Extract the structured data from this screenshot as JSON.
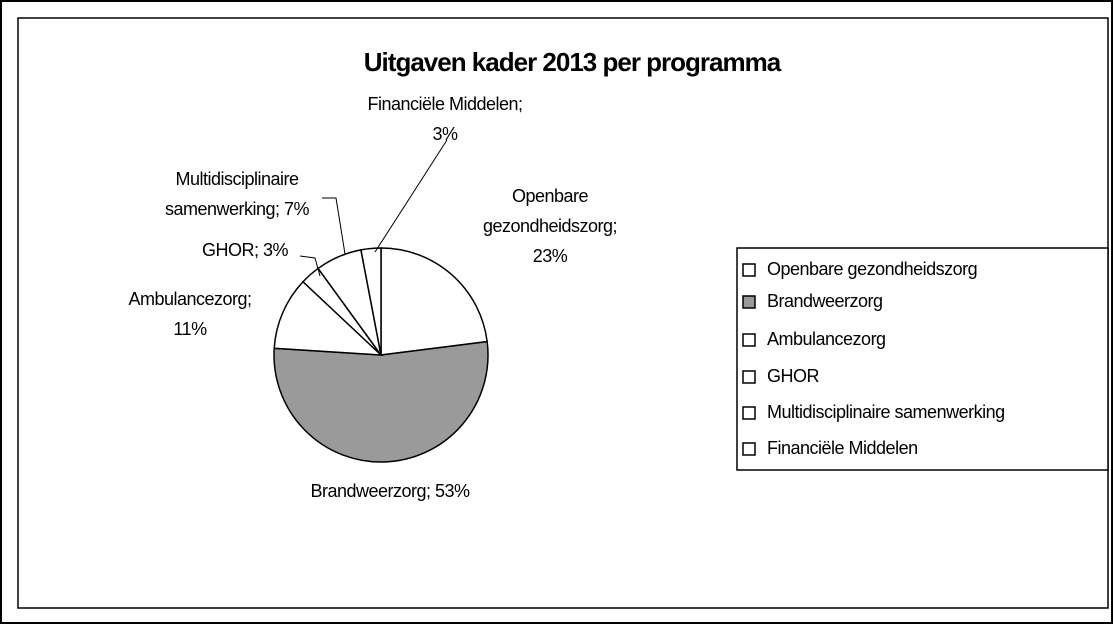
{
  "chart_data": {
    "type": "pie",
    "title": "Uitgaven kader 2013 per programma",
    "categories": [
      "Openbare gezondheidszorg",
      "Brandweerzorg",
      "Ambulancezorg",
      "GHOR",
      "Multidisciplinaire samenwerking",
      "Financiële Middelen"
    ],
    "values": [
      23,
      53,
      11,
      3,
      7,
      3
    ],
    "value_labels": [
      "Openbare gezondheidszorg; 23%",
      "Brandweerzorg; 53%",
      "Ambulancezorg; 11%",
      "GHOR; 3%",
      "Multidisciplinaire samenwerking; 7%",
      "Financiële Middelen; 3%"
    ],
    "colors": [
      "#ffffff",
      "#9a9a9a",
      "#ffffff",
      "#ffffff",
      "#ffffff",
      "#ffffff"
    ],
    "legend": "right"
  }
}
